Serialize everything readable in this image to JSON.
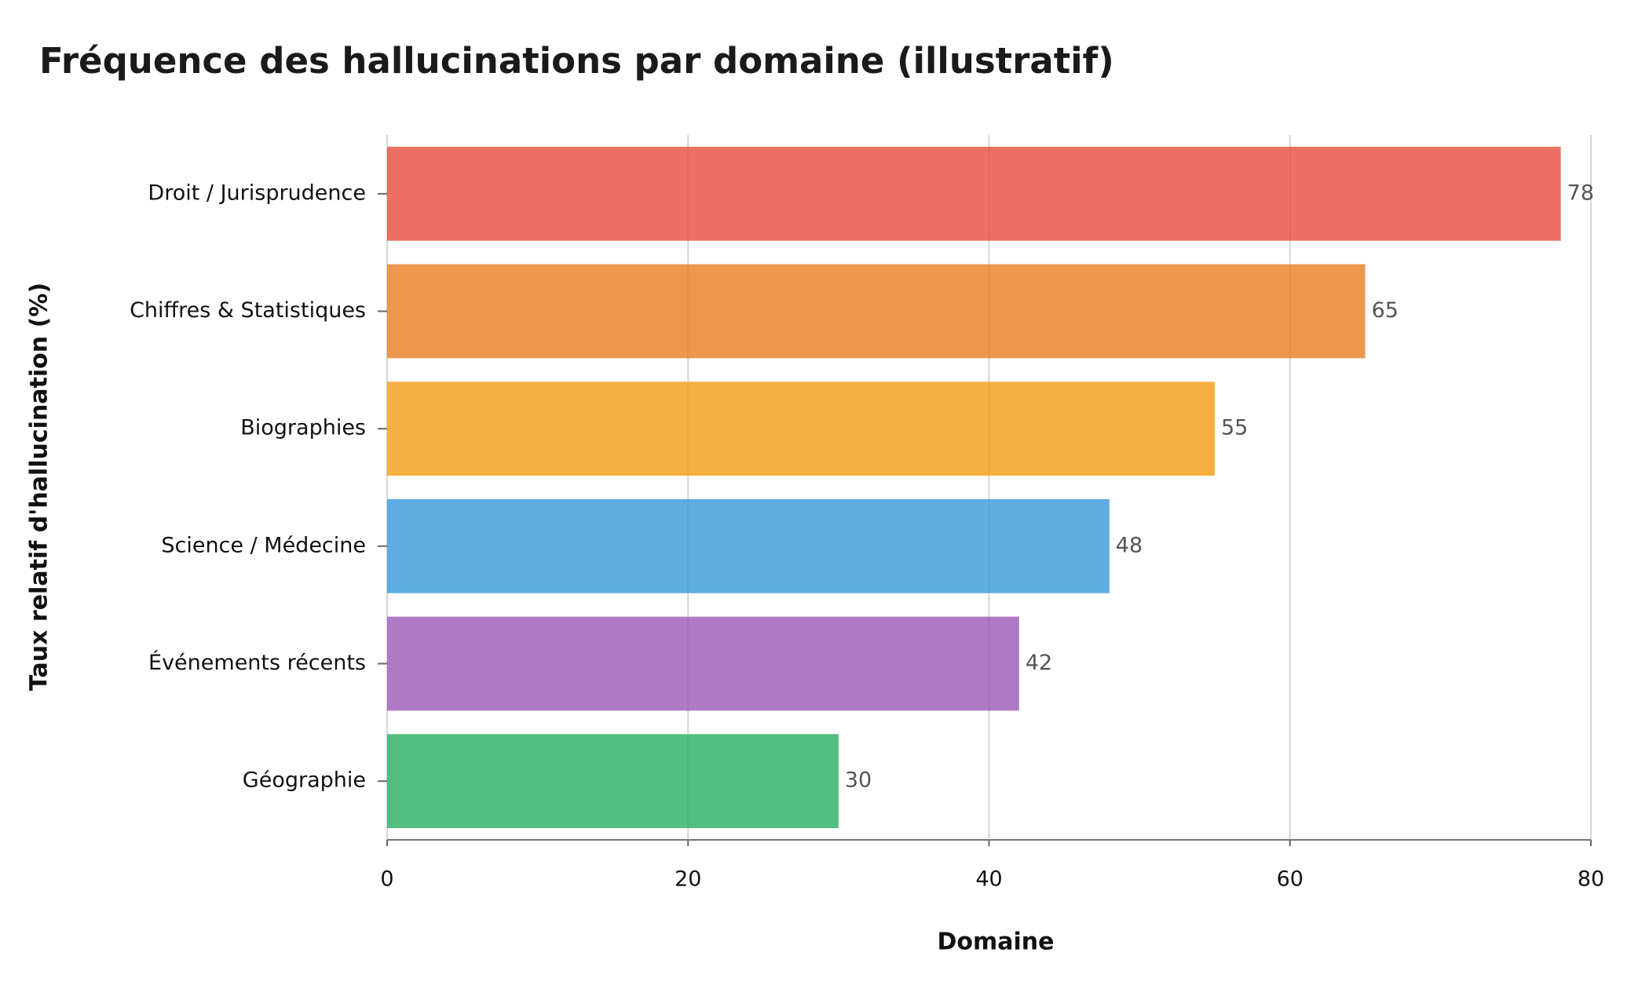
{
  "chart_data": {
    "type": "hbar",
    "title": "Fréquence des hallucinations par domaine (illustratif)",
    "x_label": "Domaine",
    "y_label": "Taux relatif d'hallucination (%)",
    "categories": [
      "Droit / Jurisprudence",
      "Chiffres & Statistiques",
      "Biographies",
      "Science / Médecine",
      "Événements récents",
      "Géographie"
    ],
    "values": [
      78,
      65,
      55,
      48,
      42,
      30
    ],
    "colors": [
      "#e74c3c",
      "#e67e22",
      "#f39c12",
      "#3498db",
      "#9b59b6",
      "#27ae60"
    ],
    "xlim": [
      0,
      80
    ],
    "xticks": [
      0,
      20,
      40,
      60,
      80
    ],
    "grid": true
  }
}
